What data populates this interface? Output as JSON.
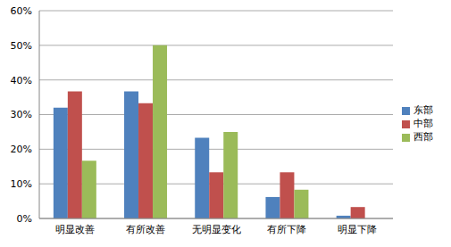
{
  "chart_data": {
    "type": "bar",
    "categories": [
      "明显改善",
      "有所改善",
      "无明显变化",
      "有所下降",
      "明显下降"
    ],
    "series": [
      {
        "name": "东部",
        "color": "#4f81bd",
        "values": [
          32,
          36.7,
          23.3,
          6.2,
          0.8
        ]
      },
      {
        "name": "中部",
        "color": "#c0504d",
        "values": [
          36.7,
          33.3,
          13.3,
          13.3,
          3.3
        ]
      },
      {
        "name": "西部",
        "color": "#9bbb59",
        "values": [
          16.7,
          50,
          25,
          8.3,
          0
        ]
      }
    ],
    "ylim": [
      0,
      60
    ],
    "yticks": [
      {
        "value": 0,
        "label": "0%"
      },
      {
        "value": 10,
        "label": "10%"
      },
      {
        "value": 20,
        "label": "20%"
      },
      {
        "value": 30,
        "label": "30%"
      },
      {
        "value": 40,
        "label": "40%"
      },
      {
        "value": 50,
        "label": "50%"
      },
      {
        "value": 60,
        "label": "60%"
      }
    ],
    "grid": true,
    "legend": "right"
  }
}
